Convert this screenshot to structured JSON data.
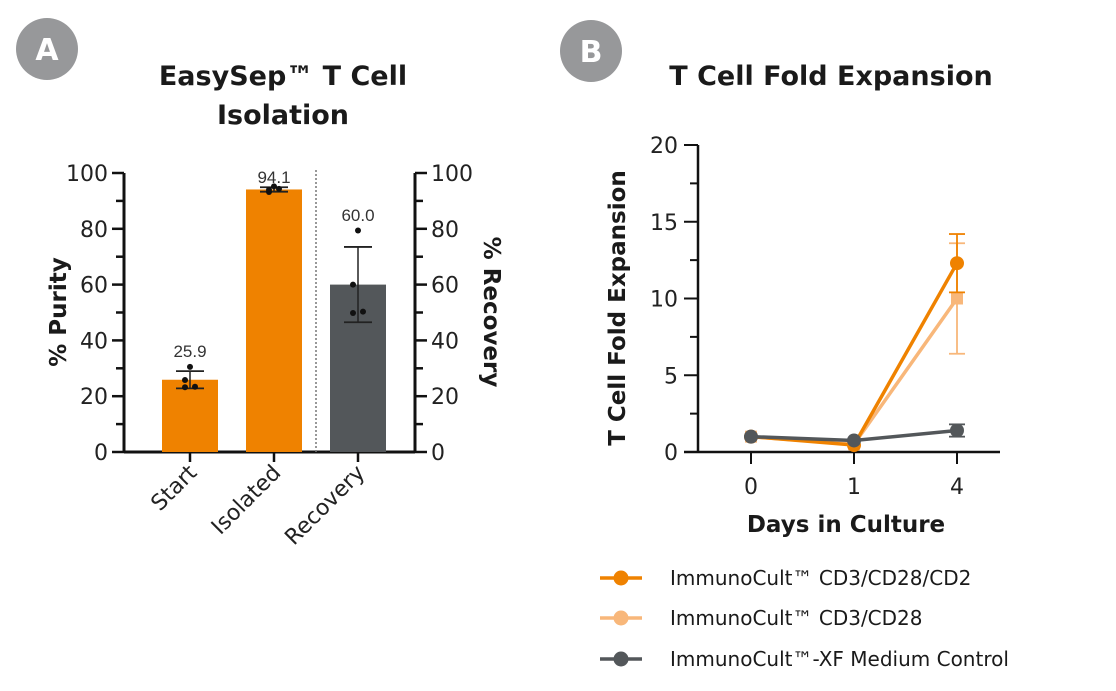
{
  "panels": {
    "a": {
      "badge": "A"
    },
    "b": {
      "badge": "B"
    }
  },
  "chart_data": [
    {
      "type": "bar",
      "title": "EasySep™ T Cell Isolation",
      "title_lines": [
        "EasySep™ T Cell",
        "Isolation"
      ],
      "categories": [
        "Start",
        "Isolated",
        "Recovery"
      ],
      "values": [
        25.9,
        94.1,
        60.0
      ],
      "data_labels": [
        "25.9",
        "94.1",
        "60.0"
      ],
      "error": [
        [
          22.8,
          29.0
        ],
        [
          93.3,
          94.9
        ],
        [
          46.5,
          73.5
        ]
      ],
      "points": [
        [
          30.5,
          25.8,
          23.2,
          23.4
        ],
        [
          95.2,
          93.2,
          94.0,
          94.3
        ],
        [
          79.4,
          60.0,
          49.8,
          50.3
        ]
      ],
      "colors": [
        "#ef8200",
        "#ef8200",
        "#53575a"
      ],
      "axis": "left-for-first-two, right-for-recovery",
      "ylabel": "% Purity",
      "ylabel_right": "% Recovery",
      "ylim": [
        0,
        100
      ],
      "yticks": [
        0,
        20,
        40,
        60,
        80,
        100
      ],
      "ylim_right": [
        0,
        100
      ],
      "yticks_right": [
        0,
        20,
        40,
        60,
        80,
        100
      ],
      "divider": "dotted line between Isolated and Recovery",
      "grid": false
    },
    {
      "type": "line",
      "title": "T Cell Fold Expansion",
      "xlabel": "Days in Culture",
      "ylabel": "T Cell Fold Expansion",
      "x": [
        "0",
        "1",
        "4"
      ],
      "ylim": [
        0,
        20
      ],
      "yticks": [
        0,
        5,
        10,
        15,
        20
      ],
      "grid": false,
      "legend_position": "bottom",
      "series": [
        {
          "name": "ImmunoCult™ CD3/CD28/CD2",
          "color": "#ef8200",
          "marker": "circle",
          "values": [
            1.0,
            0.45,
            12.3
          ],
          "error": [
            null,
            null,
            [
              10.4,
              14.2
            ]
          ]
        },
        {
          "name": "ImmunoCult™ CD3/CD28",
          "color": "#f8b77a",
          "marker": "square",
          "values": [
            1.0,
            0.5,
            10.0
          ],
          "error": [
            null,
            null,
            [
              6.4,
              13.6
            ]
          ]
        },
        {
          "name": "ImmunoCult™-XF Medium Control",
          "color": "#53575a",
          "marker": "circle",
          "values": [
            1.0,
            0.75,
            1.4
          ],
          "error": [
            null,
            null,
            [
              1.0,
              1.8
            ]
          ]
        }
      ]
    }
  ]
}
